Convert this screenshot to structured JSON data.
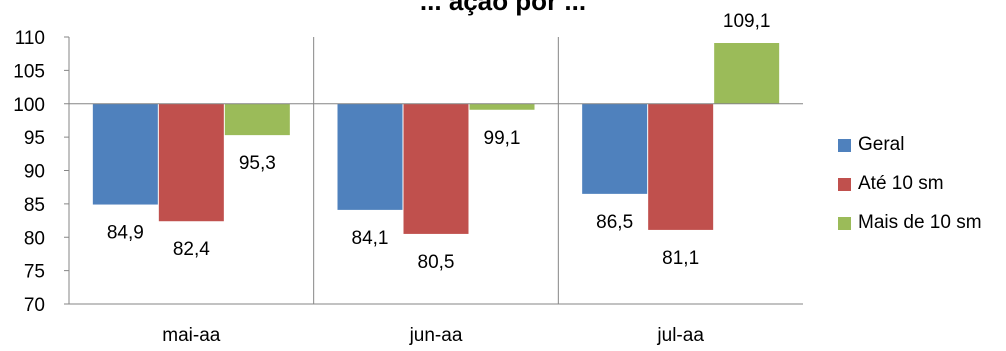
{
  "chart_data": {
    "type": "bar",
    "title": "... ação por ...",
    "categories": [
      "mai-aa",
      "jun-aa",
      "jul-aa"
    ],
    "baseline": 100,
    "ylim": [
      70,
      110
    ],
    "yticks": [
      70,
      75,
      80,
      85,
      90,
      95,
      100,
      105,
      110
    ],
    "ytick_labels": [
      "70",
      "75",
      "80",
      "85",
      "90",
      "95",
      "100",
      "105",
      "110"
    ],
    "series": [
      {
        "name": "Geral",
        "color": "#4F81BD",
        "values": [
          84.9,
          84.1,
          86.5
        ],
        "labels": [
          "84,9",
          "84,1",
          "86,5"
        ]
      },
      {
        "name": "Até 10 sm",
        "color": "#C0504D",
        "values": [
          82.4,
          80.5,
          81.1
        ],
        "labels": [
          "82,4",
          "80,5",
          "81,1"
        ]
      },
      {
        "name": "Mais de 10 sm",
        "color": "#9BBB59",
        "values": [
          95.3,
          99.1,
          109.1
        ],
        "labels": [
          "95,3",
          "99,1",
          "109,1"
        ]
      }
    ],
    "legend_position": "right",
    "grid": false
  }
}
